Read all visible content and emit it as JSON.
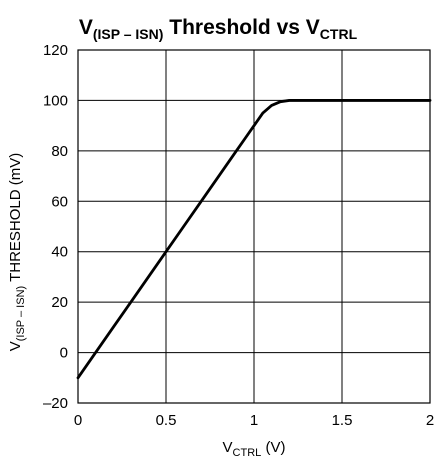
{
  "chart_data": {
    "type": "line",
    "title": {
      "prefix": "V",
      "prefix_sub": "(ISP – ISN)",
      "middle": " Threshold vs V",
      "suffix_sub": "CTRL"
    },
    "xlabel": {
      "main": "V",
      "sub": "CTRL",
      "unit": " (V)"
    },
    "ylabel": {
      "main": "V",
      "sub": "(ISP – ISN)",
      "rest": " THRESHOLD (mV)"
    },
    "xlim": [
      0,
      2
    ],
    "ylim": [
      -20,
      120
    ],
    "x_ticks": [
      0,
      0.5,
      1,
      1.5,
      2
    ],
    "x_tick_labels": [
      "0",
      "0.5",
      "1",
      "1.5",
      "2"
    ],
    "y_ticks": [
      -20,
      0,
      20,
      40,
      60,
      80,
      100,
      120
    ],
    "y_tick_labels": [
      "–20",
      "0",
      "20",
      "40",
      "60",
      "80",
      "100",
      "120"
    ],
    "grid": true,
    "series": [
      {
        "x": [
          0,
          0.1,
          0.2,
          0.3,
          0.4,
          0.5,
          0.6,
          0.7,
          0.8,
          0.9,
          0.95,
          1.0,
          1.05,
          1.1,
          1.15,
          1.2,
          1.3,
          1.4,
          1.5,
          1.6,
          1.7,
          1.8,
          1.9,
          2.0
        ],
        "y": [
          -10,
          0,
          10,
          20,
          30,
          40,
          50,
          60,
          70,
          80,
          85,
          90,
          95,
          98,
          99.5,
          100,
          100,
          100,
          100,
          100,
          100,
          100,
          100,
          100
        ]
      }
    ]
  }
}
